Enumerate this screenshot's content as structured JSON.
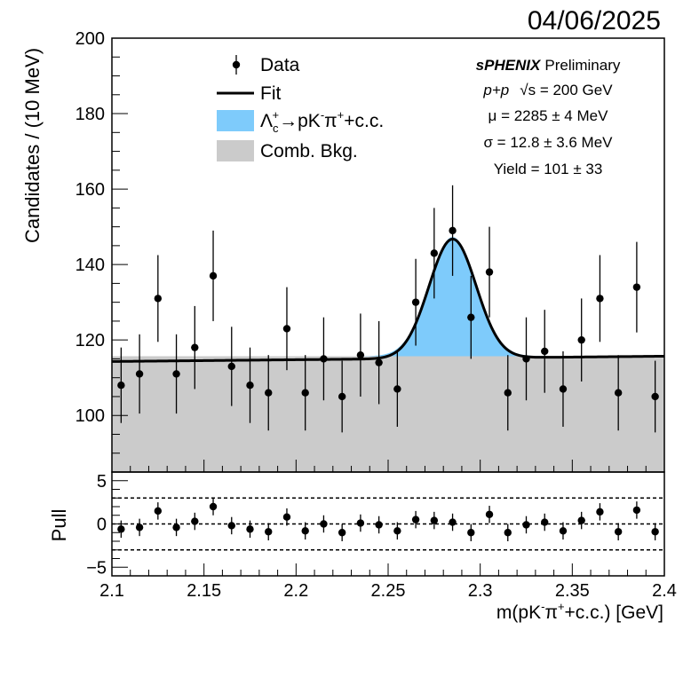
{
  "date": "04/06/2025",
  "legend": {
    "data": "Data",
    "fit": "Fit",
    "signal": "Λc+→pK-π++c.c.",
    "bkg": "Comb. Bkg."
  },
  "info": {
    "experiment": "sPHENIX",
    "status": "Preliminary",
    "system": "p+p",
    "energy": "√s = 200 GeV",
    "mu": "μ = 2285 ± 4 MeV",
    "sigma": "σ = 12.8 ± 3.6 MeV",
    "yield": "Yield = 101 ± 33"
  },
  "colors": {
    "signal": "#7ecbfb",
    "background": "#cbcbcb",
    "fit": "#000000",
    "points": "#000000"
  },
  "chart_data": [
    {
      "type": "scatter",
      "title": "",
      "xlabel": "m(pK-π++c.c.) [GeV]",
      "ylabel": "Candidates / (10 MeV)",
      "xlim": [
        2.1,
        2.4
      ],
      "ylim": [
        85,
        200
      ],
      "yticks": [
        100,
        120,
        140,
        160,
        180,
        200
      ],
      "xticks": [
        2.1,
        2.15,
        2.2,
        2.25,
        2.3,
        2.35,
        2.4
      ],
      "x": [
        2.105,
        2.115,
        2.125,
        2.135,
        2.145,
        2.155,
        2.165,
        2.175,
        2.185,
        2.195,
        2.205,
        2.215,
        2.225,
        2.235,
        2.245,
        2.255,
        2.265,
        2.275,
        2.285,
        2.295,
        2.305,
        2.315,
        2.325,
        2.335,
        2.345,
        2.355,
        2.365,
        2.375,
        2.385,
        2.395
      ],
      "y": [
        108,
        111,
        131,
        111,
        118,
        137,
        113,
        108,
        106,
        123,
        106,
        115,
        105,
        116,
        114,
        107,
        130,
        143,
        149,
        126,
        138,
        106,
        115,
        117,
        107,
        120,
        131,
        106,
        134,
        105
      ],
      "yerr": [
        10,
        10.5,
        11.5,
        10.5,
        11,
        12,
        10.5,
        10,
        10,
        11,
        10,
        11,
        9.5,
        11,
        11,
        10,
        11.5,
        12,
        12,
        11,
        12,
        10,
        11,
        11,
        10,
        11,
        11.5,
        10,
        12,
        9.5
      ],
      "fit": {
        "background_line": {
          "x": [
            2.1,
            2.4
          ],
          "y": [
            114.3,
            115.7
          ]
        },
        "signal_gaussian": {
          "mean": 2.285,
          "sigma": 0.0128,
          "peak_above_background": 31.6
        }
      },
      "legend_position": "top-left"
    },
    {
      "type": "scatter",
      "title": "",
      "xlabel": "m(pK-π++c.c.) [GeV]",
      "ylabel": "Pull",
      "xlim": [
        2.1,
        2.4
      ],
      "ylim": [
        -6,
        6
      ],
      "yticks": [
        -5,
        0,
        5
      ],
      "reference_lines": [
        -3,
        0,
        3
      ],
      "x": [
        2.105,
        2.115,
        2.125,
        2.135,
        2.145,
        2.155,
        2.165,
        2.175,
        2.185,
        2.195,
        2.205,
        2.215,
        2.225,
        2.235,
        2.245,
        2.255,
        2.265,
        2.275,
        2.285,
        2.295,
        2.305,
        2.315,
        2.325,
        2.335,
        2.345,
        2.355,
        2.365,
        2.375,
        2.385,
        2.395
      ],
      "y": [
        -0.6,
        -0.4,
        1.5,
        -0.4,
        0.3,
        2.0,
        -0.2,
        -0.6,
        -0.9,
        0.8,
        -0.8,
        0.0,
        -1.0,
        0.1,
        -0.1,
        -0.8,
        0.5,
        0.4,
        0.2,
        -1.0,
        1.1,
        -1.0,
        -0.1,
        0.2,
        -0.8,
        0.4,
        1.4,
        -0.9,
        1.6,
        -0.9
      ],
      "yerr": [
        1,
        1,
        1,
        1,
        1,
        1,
        1,
        1,
        1,
        1,
        1,
        1,
        1,
        1,
        1,
        1,
        1,
        1,
        1,
        1,
        1,
        1,
        1,
        1,
        1,
        1,
        1,
        1,
        1,
        1
      ]
    }
  ]
}
